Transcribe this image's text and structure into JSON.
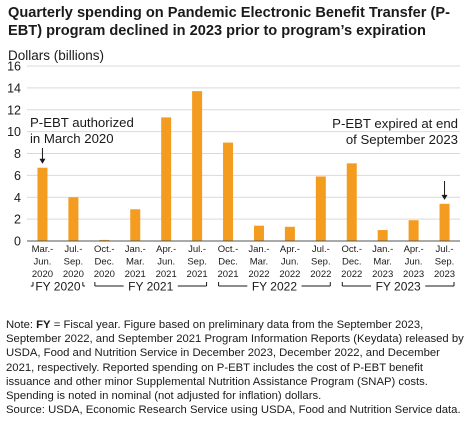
{
  "title": "Quarterly spending on Pandemic Electronic Benefit Transfer (P-EBT) program declined in 2023 prior to program’s expiration",
  "chart_data": {
    "type": "bar",
    "ylabel": "Dollars (billions)",
    "ylim": [
      0,
      16
    ],
    "yticks": [
      0,
      2,
      4,
      6,
      8,
      10,
      12,
      14,
      16
    ],
    "grid": true,
    "bar_color": "#f39c1f",
    "categories": [
      [
        "Mar.-",
        "Jun.",
        "2020"
      ],
      [
        "Jul.-",
        "Sep.",
        "2020"
      ],
      [
        "Oct.-",
        "Dec.",
        "2020"
      ],
      [
        "Jan.-",
        "Mar.",
        "2021"
      ],
      [
        "Apr.-",
        "Jun.",
        "2021"
      ],
      [
        "Jul.-",
        "Sep.",
        "2021"
      ],
      [
        "Oct.-",
        "Dec.",
        "2021"
      ],
      [
        "Jan.-",
        "Mar.",
        "2022"
      ],
      [
        "Apr.-",
        "Jun.",
        "2022"
      ],
      [
        "Jul.-",
        "Sep.",
        "2022"
      ],
      [
        "Oct.-",
        "Dec.",
        "2022"
      ],
      [
        "Jan.-",
        "Mar.",
        "2023"
      ],
      [
        "Apr.-",
        "Jun.",
        "2023"
      ],
      [
        "Jul.-",
        "Sep.",
        "2023"
      ]
    ],
    "values": [
      6.7,
      4.0,
      0.1,
      2.9,
      11.3,
      13.7,
      9.0,
      1.4,
      1.3,
      5.9,
      7.1,
      1.0,
      1.9,
      3.4
    ],
    "fiscal_years": [
      {
        "label": "FY 2020",
        "from": 0,
        "to": 1
      },
      {
        "label": "FY 2021",
        "from": 2,
        "to": 5
      },
      {
        "label": "FY 2022",
        "from": 6,
        "to": 9
      },
      {
        "label": "FY 2023",
        "from": 10,
        "to": 13
      }
    ],
    "annotations": [
      {
        "lines": [
          "P-EBT authorized",
          "in March 2020"
        ],
        "bar": 0,
        "anchor": "start"
      },
      {
        "lines": [
          "P-EBT expired at end",
          "of September 2023"
        ],
        "bar": 13,
        "anchor": "end"
      }
    ]
  },
  "notes": {
    "fy_prefix": "Note: ",
    "fy_term": "FY",
    "text": " = Fiscal year. Figure based on preliminary data from the September 2023, September 2022, and September 2021 Program Information Reports (Keydata) released by USDA, Food and Nutrition Service in December 2023, December 2022, and December 2021, respectively. Reported spending on P-EBT includes the cost of P-EBT benefit issuance and other minor Supplemental Nutrition Assistance Program (SNAP) costs. Spending is noted in nominal (not adjusted for inflation) dollars.",
    "source": "Source: USDA, Economic Research Service using USDA, Food and Nutrition Service data."
  }
}
